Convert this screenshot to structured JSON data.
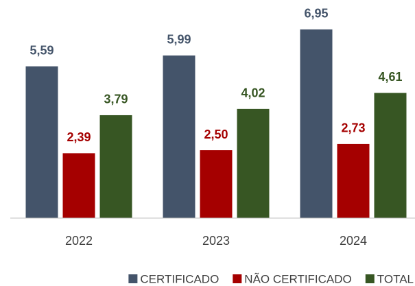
{
  "chart_data": {
    "type": "bar",
    "categories": [
      "2022",
      "2023",
      "2024"
    ],
    "series": [
      {
        "name": "CERTIFICADO",
        "color": "#44546a",
        "values": [
          5.59,
          5.99,
          6.95
        ],
        "value_labels": [
          "5,59",
          "5,99",
          "6,95"
        ]
      },
      {
        "name": "NÃO CERTIFICADO",
        "color": "#a50000",
        "values": [
          2.39,
          2.5,
          2.73
        ],
        "value_labels": [
          "2,39",
          "2,50",
          "2,73"
        ]
      },
      {
        "name": "TOTAL",
        "color": "#375623",
        "values": [
          3.79,
          4.02,
          4.61
        ],
        "value_labels": [
          "3,79",
          "4,02",
          "4,61"
        ]
      }
    ],
    "ylim": [
      0,
      7.3
    ],
    "legend": "bottom"
  }
}
